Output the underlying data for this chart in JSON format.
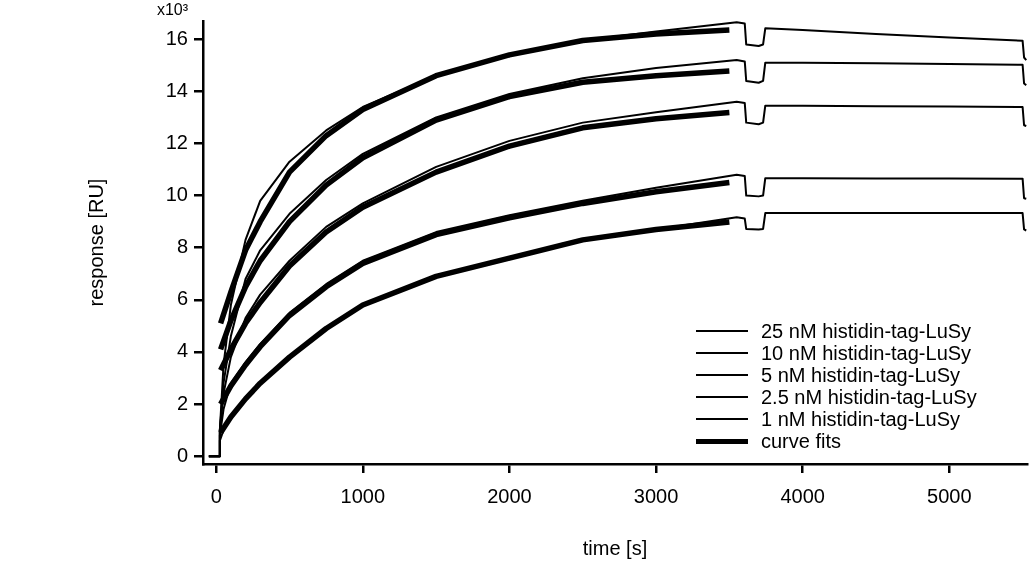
{
  "chart_data": {
    "type": "line",
    "xlabel": "time [s]",
    "ylabel": "response [RU]",
    "annotations": [
      "x10³"
    ],
    "xlim": [
      -90,
      5530
    ],
    "xticks": [
      0,
      1000,
      2000,
      3000,
      4000,
      5000
    ],
    "ylim": [
      -0.3,
      16.7
    ],
    "yticks": [
      0,
      2,
      4,
      6,
      8,
      10,
      12,
      14,
      16
    ],
    "grid": false,
    "legend": "bottom right",
    "marker": "none",
    "line_style": "solid",
    "series": [
      {
        "name": "25 nM histidin-tag-LuSy",
        "color": "#000000",
        "x": [
          -50,
          20,
          25,
          50,
          100,
          200,
          300,
          500,
          750,
          1000,
          1500,
          2000,
          2500,
          3000,
          3550,
          3605,
          3615,
          3700,
          3730,
          3745,
          4000,
          4500,
          5000,
          5500,
          5510,
          5525
        ],
        "values": [
          0,
          0,
          1,
          3.5,
          5.8,
          8.3,
          9.8,
          11.3,
          12.5,
          13.4,
          14.6,
          15.4,
          15.95,
          16.3,
          16.65,
          16.6,
          15.8,
          15.74,
          15.8,
          16.42,
          16.35,
          16.2,
          16.07,
          15.94,
          15.3,
          15.2
        ]
      },
      {
        "name": "10 nM histidin-tag-LuSy",
        "color": "#000000",
        "x": [
          -50,
          20,
          25,
          50,
          100,
          200,
          300,
          500,
          750,
          1000,
          1500,
          2000,
          2500,
          3000,
          3550,
          3605,
          3615,
          3700,
          3730,
          3745,
          4000,
          4500,
          5000,
          5500,
          5510,
          5525
        ],
        "values": [
          0,
          0,
          1,
          2.8,
          4.6,
          6.8,
          7.9,
          9.3,
          10.6,
          11.6,
          13.0,
          13.9,
          14.5,
          14.9,
          15.2,
          15.15,
          14.4,
          14.33,
          14.4,
          15.1,
          15.1,
          15.08,
          15.05,
          15.02,
          14.3,
          14.24
        ]
      },
      {
        "name": "5 nM histidin-tag-LuSy",
        "color": "#000000",
        "x": [
          -50,
          20,
          25,
          50,
          100,
          200,
          300,
          500,
          750,
          1000,
          1500,
          2000,
          2500,
          3000,
          3550,
          3605,
          3615,
          3700,
          3730,
          3745,
          4000,
          4500,
          5000,
          5500,
          5510,
          5525
        ],
        "values": [
          0,
          0,
          1,
          2.4,
          3.8,
          5.3,
          6.2,
          7.5,
          8.8,
          9.7,
          11.1,
          12.1,
          12.8,
          13.2,
          13.6,
          13.55,
          12.8,
          12.74,
          12.8,
          13.45,
          13.45,
          13.43,
          13.42,
          13.4,
          12.7,
          12.67
        ]
      },
      {
        "name": "2.5 nM histidin-tag-LuSy",
        "color": "#000000",
        "x": [
          -50,
          20,
          25,
          50,
          100,
          200,
          300,
          500,
          750,
          1000,
          1500,
          2000,
          2500,
          3000,
          3550,
          3605,
          3615,
          3700,
          3730,
          3745,
          4000,
          4500,
          5000,
          5500,
          5510,
          5525
        ],
        "values": [
          0,
          0,
          0.8,
          1.8,
          2.8,
          3.6,
          4.3,
          5.5,
          6.6,
          7.5,
          8.6,
          9.25,
          9.8,
          10.3,
          10.8,
          10.75,
          10.0,
          9.97,
          10.0,
          10.67,
          10.67,
          10.66,
          10.66,
          10.65,
          9.9,
          9.88
        ]
      },
      {
        "name": "1 nM histidin-tag-LuSy",
        "color": "#000000",
        "x": [
          -50,
          20,
          25,
          50,
          100,
          200,
          300,
          500,
          750,
          1000,
          1500,
          2000,
          2500,
          3000,
          3550,
          3605,
          3615,
          3700,
          3730,
          3745,
          4000,
          4500,
          5000,
          5500,
          5510,
          5525
        ],
        "values": [
          0,
          0,
          0.6,
          1.0,
          1.5,
          2.2,
          2.8,
          3.8,
          4.9,
          5.8,
          6.9,
          7.6,
          8.3,
          8.7,
          9.17,
          9.12,
          8.72,
          8.7,
          8.72,
          9.33,
          9.33,
          9.33,
          9.33,
          9.33,
          8.7,
          8.66
        ]
      },
      {
        "name": "curve fits",
        "color": "#000000",
        "x": [
          30,
          100,
          200,
          300,
          500,
          750,
          1000,
          1500,
          2000,
          2500,
          3000,
          3500
        ],
        "values": [
          5.1,
          6.3,
          7.9,
          9.0,
          10.9,
          12.3,
          13.3,
          14.6,
          15.4,
          15.95,
          16.2,
          16.35
        ]
      },
      {
        "color": "#000000",
        "x": [
          30,
          100,
          200,
          300,
          500,
          750,
          1000,
          1500,
          2000,
          2500,
          3000,
          3500
        ],
        "values": [
          4.1,
          5.2,
          6.5,
          7.5,
          9.0,
          10.4,
          11.45,
          12.9,
          13.8,
          14.35,
          14.6,
          14.78
        ]
      },
      {
        "color": "#000000",
        "x": [
          30,
          100,
          200,
          300,
          500,
          750,
          1000,
          1500,
          2000,
          2500,
          3000,
          3500
        ],
        "values": [
          3.3,
          4.1,
          5.1,
          5.9,
          7.3,
          8.6,
          9.55,
          10.9,
          11.9,
          12.6,
          12.95,
          13.19
        ]
      },
      {
        "color": "#000000",
        "x": [
          30,
          100,
          200,
          300,
          500,
          750,
          1000,
          1500,
          2000,
          2500,
          3000,
          3500
        ],
        "values": [
          2.0,
          2.7,
          3.5,
          4.2,
          5.4,
          6.5,
          7.4,
          8.5,
          9.15,
          9.7,
          10.15,
          10.5
        ]
      },
      {
        "color": "#000000",
        "x": [
          30,
          100,
          200,
          300,
          500,
          750,
          1000,
          1500,
          2000,
          2500,
          3000,
          3500
        ],
        "values": [
          0.9,
          1.5,
          2.2,
          2.8,
          3.8,
          4.9,
          5.8,
          6.9,
          7.6,
          8.3,
          8.7,
          8.99
        ]
      }
    ]
  }
}
